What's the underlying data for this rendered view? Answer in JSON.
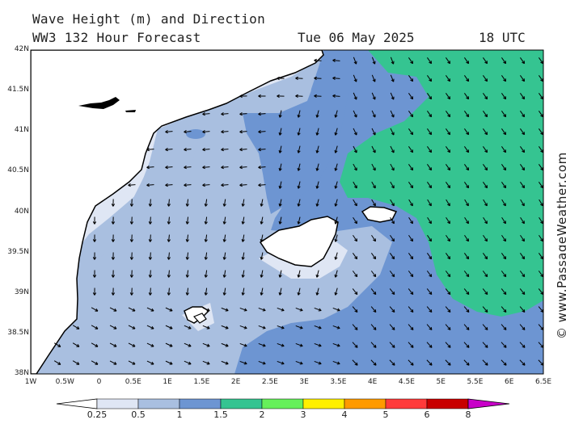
{
  "header": {
    "line1": "Wave Height (m) and Direction",
    "line2": "WW3 132 Hour Forecast",
    "date": "Tue 06 May 2025",
    "time": "18 UTC"
  },
  "credit": "© www.PassageWeather.com",
  "lat_labels": [
    "42N",
    "41.5N",
    "41N",
    "40.5N",
    "40N",
    "39.5N",
    "39N",
    "38.5N",
    "38N"
  ],
  "lon_labels": [
    "1W",
    "0.5W",
    "0",
    "0.5E",
    "1E",
    "1.5E",
    "2E",
    "2.5E",
    "3E",
    "3.5E",
    "4E",
    "4.5E",
    "5E",
    "5.5E",
    "6E",
    "6.5E"
  ],
  "colorbar": {
    "labels": [
      "0.25",
      "0.5",
      "1",
      "1.5",
      "2",
      "3",
      "4",
      "5",
      "6",
      "8"
    ],
    "colors": [
      "#ffffff",
      "#dfe6f4",
      "#a9bfe0",
      "#6d95d2",
      "#35c491",
      "#66f05a",
      "#fff000",
      "#ff9a00",
      "#ff3b3b",
      "#c80000",
      "#c800c8"
    ]
  },
  "wave_colors": {
    "lt025": "#ffffff",
    "c025_05": "#dfe6f4",
    "c05_1": "#a9bfe0",
    "c1_15": "#6d95d2",
    "c15_2": "#35c491"
  },
  "icons": [
    "wave-arrow-icon",
    "copyright-icon"
  ]
}
